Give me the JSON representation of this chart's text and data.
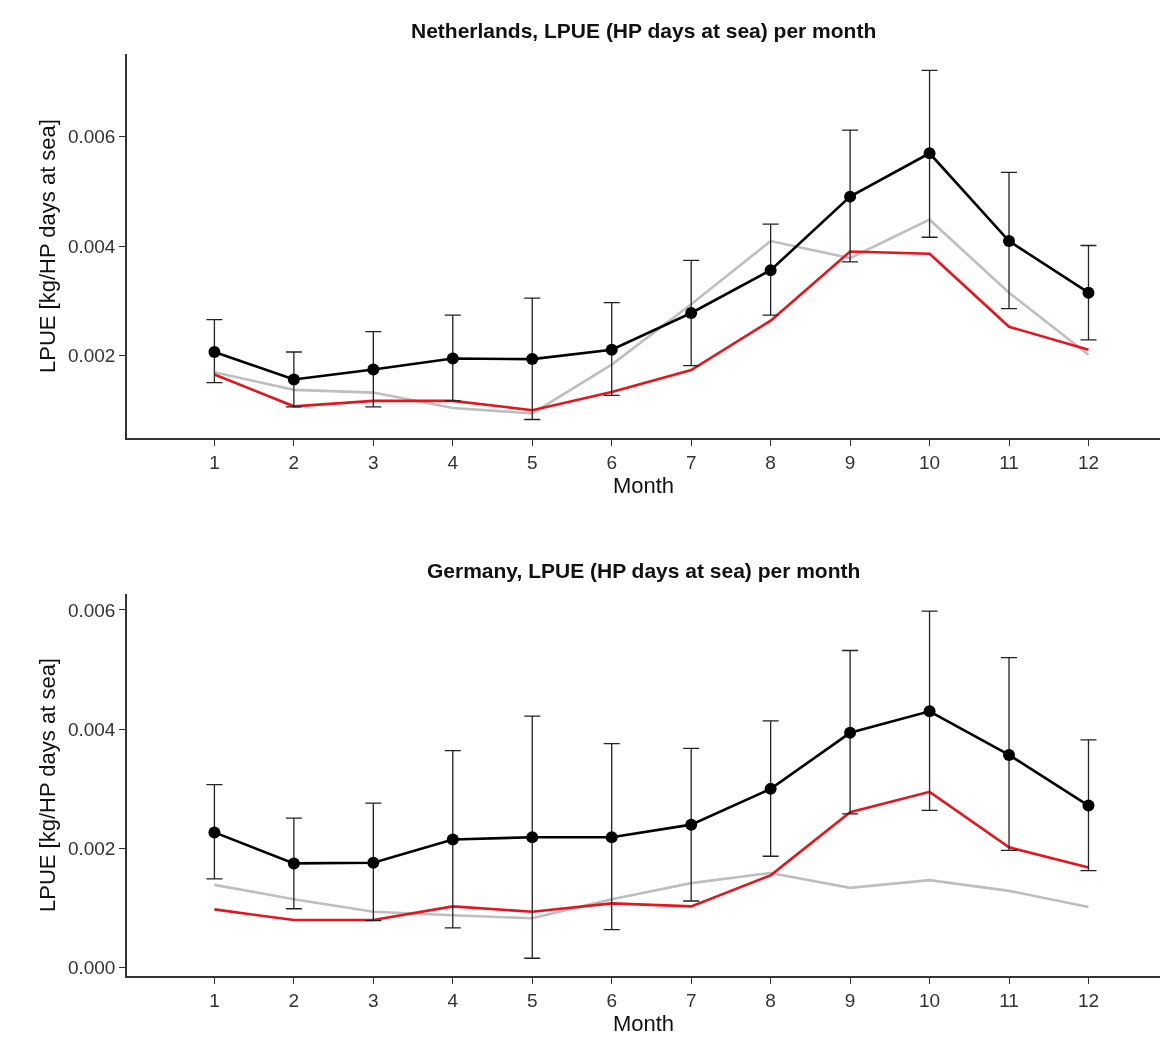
{
  "chart_data": [
    {
      "type": "line",
      "title": "Netherlands, LPUE (HP days at sea) per month",
      "xlabel": "Month",
      "ylabel": "LPUE [kg/HP days at sea]",
      "x": [
        1,
        2,
        3,
        4,
        5,
        6,
        7,
        8,
        9,
        10,
        11,
        12
      ],
      "xlim": [
        -0.1,
        12.9
      ],
      "xticks": [
        1,
        2,
        3,
        4,
        5,
        6,
        7,
        8,
        9,
        10,
        11,
        12
      ],
      "ylim": [
        0.0005,
        0.0075
      ],
      "yticks": [
        0.002,
        0.004,
        0.006
      ],
      "line_style": "solid",
      "series": [
        {
          "color": "#bebebe",
          "marker": "none",
          "values": [
            0.0017,
            0.00138,
            0.00133,
            0.00105,
            0.00095,
            0.00184,
            0.00294,
            0.00409,
            0.00378,
            0.00448,
            0.00315,
            0.00202
          ]
        },
        {
          "color": "#e8141c",
          "marker": "none",
          "values": [
            0.00166,
            0.00108,
            0.00118,
            0.00118,
            0.00101,
            0.00134,
            0.00174,
            0.00264,
            0.0039,
            0.00386,
            0.00253,
            0.00211
          ]
        },
        {
          "color": "#000000",
          "marker": "circle",
          "values": [
            0.00207,
            0.00157,
            0.00175,
            0.00195,
            0.00194,
            0.00211,
            0.00278,
            0.00356,
            0.0049,
            0.00569,
            0.00409,
            0.00315
          ],
          "errors": [
            [
              0.00151,
              0.00266
            ],
            [
              0.00107,
              0.00207
            ],
            [
              0.00107,
              0.00244
            ],
            [
              0.00118,
              0.00274
            ],
            [
              0.00084,
              0.00305
            ],
            [
              0.00128,
              0.00297
            ],
            [
              0.00182,
              0.00374
            ],
            [
              0.00274,
              0.0044
            ],
            [
              0.00371,
              0.00611
            ],
            [
              0.00416,
              0.0072
            ],
            [
              0.00286,
              0.00534
            ],
            [
              0.00229,
              0.00401
            ]
          ]
        }
      ]
    },
    {
      "type": "line",
      "title": "Germany, LPUE (HP days at sea) per month",
      "xlabel": "Month",
      "ylabel": "LPUE [kg/HP days at sea]",
      "x": [
        1,
        2,
        3,
        4,
        5,
        6,
        7,
        8,
        9,
        10,
        11,
        12
      ],
      "xlim": [
        -0.1,
        12.9
      ],
      "xticks": [
        1,
        2,
        3,
        4,
        5,
        6,
        7,
        8,
        9,
        10,
        11,
        12
      ],
      "ylim": [
        -0.00014,
        0.00627
      ],
      "yticks": [
        {
          "value": 0,
          "label": "0.000"
        },
        0.002,
        0.004,
        0.006
      ],
      "line_style": "solid",
      "series": [
        {
          "color": "#bebebe",
          "marker": "none",
          "values": [
            0.00139,
            0.00115,
            0.00094,
            0.00088,
            0.00083,
            0.00115,
            0.00142,
            0.00159,
            0.00134,
            0.00147,
            0.00129,
            0.00102
          ]
        },
        {
          "color": "#e8141c",
          "marker": "none",
          "values": [
            0.00098,
            0.0008,
            0.0008,
            0.00103,
            0.00094,
            0.00108,
            0.00103,
            0.00155,
            0.00261,
            0.00295,
            0.00202,
            0.00168
          ]
        },
        {
          "color": "#000000",
          "marker": "circle",
          "values": [
            0.00227,
            0.00175,
            0.00176,
            0.00215,
            0.00219,
            0.00219,
            0.0024,
            0.003,
            0.00394,
            0.0043,
            0.00357,
            0.00272
          ],
          "errors": [
            [
              0.00149,
              0.00307
            ],
            [
              0.00099,
              0.00251
            ],
            [
              0.00079,
              0.00276
            ],
            [
              0.00067,
              0.00364
            ],
            [
              0.00016,
              0.00422
            ],
            [
              0.00064,
              0.00376
            ],
            [
              0.00112,
              0.00368
            ],
            [
              0.00187,
              0.00414
            ],
            [
              0.00258,
              0.00532
            ],
            [
              0.00264,
              0.00598
            ],
            [
              0.00197,
              0.0052
            ],
            [
              0.00163,
              0.00382
            ]
          ]
        }
      ]
    }
  ]
}
